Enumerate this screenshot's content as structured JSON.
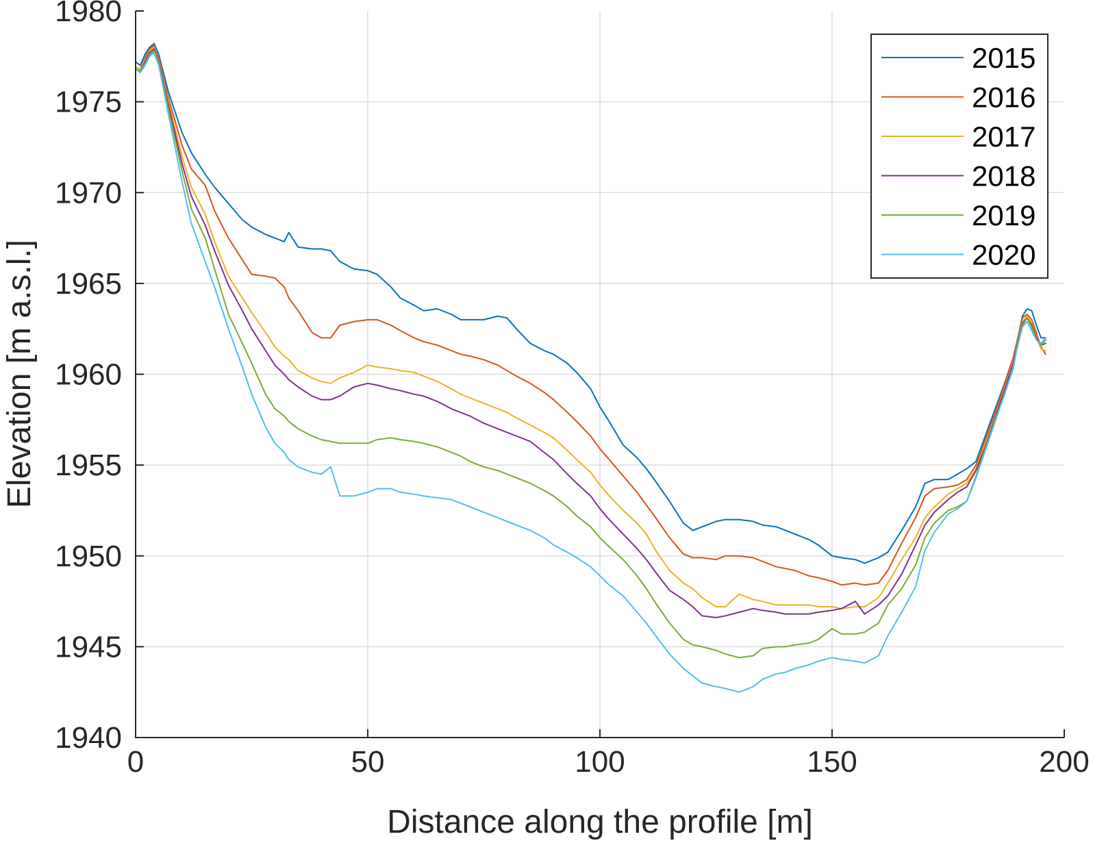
{
  "chart_data": {
    "type": "line",
    "title": "",
    "xlabel": "Distance along the profile [m]",
    "ylabel": "Elevation [m a.s.l.]",
    "xlim": [
      0,
      200
    ],
    "ylim": [
      1940,
      1980
    ],
    "xticks": [
      0,
      50,
      100,
      150,
      200
    ],
    "yticks": [
      1940,
      1945,
      1950,
      1955,
      1960,
      1965,
      1970,
      1975,
      1980
    ],
    "grid": true,
    "legend_position": "top-right",
    "x": [
      0,
      1,
      2,
      3,
      4,
      5,
      7,
      10,
      12,
      15,
      17,
      20,
      23,
      25,
      28,
      30,
      32,
      33,
      35,
      38,
      40,
      42,
      44,
      47,
      50,
      52,
      55,
      57,
      60,
      62,
      65,
      68,
      70,
      72,
      75,
      78,
      80,
      82,
      85,
      88,
      90,
      93,
      95,
      98,
      100,
      102,
      105,
      108,
      110,
      112,
      115,
      118,
      120,
      122,
      125,
      127,
      130,
      133,
      135,
      138,
      140,
      142,
      145,
      147,
      150,
      152,
      155,
      157,
      160,
      162,
      165,
      168,
      170,
      172,
      175,
      177,
      179,
      181,
      183,
      185,
      187,
      189,
      190,
      191,
      192,
      193,
      194,
      195,
      196
    ],
    "series": [
      {
        "name": "2015",
        "color": "#0072BD",
        "values": [
          1977.2,
          1977.0,
          1977.6,
          1978.0,
          1978.2,
          1977.6,
          1975.6,
          1973.3,
          1972.2,
          1971.0,
          1970.3,
          1969.4,
          1968.5,
          1968.1,
          1967.7,
          1967.5,
          1967.3,
          1967.8,
          1967.0,
          1966.9,
          1966.9,
          1966.8,
          1966.2,
          1965.8,
          1965.7,
          1965.5,
          1964.8,
          1964.2,
          1963.8,
          1963.5,
          1963.6,
          1963.3,
          1963.0,
          1963.0,
          1963.0,
          1963.2,
          1963.1,
          1962.5,
          1961.7,
          1961.3,
          1961.1,
          1960.6,
          1960.1,
          1959.2,
          1958.2,
          1957.4,
          1956.1,
          1955.4,
          1954.8,
          1954.1,
          1953.0,
          1951.8,
          1951.4,
          1951.6,
          1951.9,
          1952.0,
          1952.0,
          1951.9,
          1951.7,
          1951.6,
          1951.4,
          1951.2,
          1950.9,
          1950.6,
          1950.0,
          1949.9,
          1949.8,
          1949.6,
          1949.9,
          1950.2,
          1951.4,
          1952.7,
          1954.0,
          1954.2,
          1954.2,
          1954.5,
          1954.8,
          1955.2,
          1956.6,
          1958.0,
          1959.4,
          1960.9,
          1962.0,
          1963.2,
          1963.6,
          1963.5,
          1962.7,
          1962.0,
          1962.0
        ]
      },
      {
        "name": "2016",
        "color": "#D95319",
        "values": [
          1976.9,
          1976.8,
          1977.4,
          1977.9,
          1978.1,
          1977.4,
          1975.3,
          1972.6,
          1971.3,
          1970.4,
          1969.0,
          1967.5,
          1966.3,
          1965.5,
          1965.4,
          1965.3,
          1964.8,
          1964.2,
          1963.5,
          1962.3,
          1962.0,
          1962.0,
          1962.7,
          1962.9,
          1963.0,
          1963.0,
          1962.7,
          1962.4,
          1962.0,
          1961.8,
          1961.6,
          1961.3,
          1961.1,
          1961.0,
          1960.8,
          1960.5,
          1960.2,
          1959.9,
          1959.5,
          1959.0,
          1958.6,
          1957.9,
          1957.4,
          1956.6,
          1955.9,
          1955.3,
          1954.4,
          1953.5,
          1952.8,
          1952.1,
          1951.0,
          1950.1,
          1949.9,
          1949.9,
          1949.8,
          1950.0,
          1950.0,
          1949.9,
          1949.7,
          1949.4,
          1949.3,
          1949.2,
          1948.9,
          1948.8,
          1948.6,
          1948.4,
          1948.5,
          1948.4,
          1948.5,
          1949.2,
          1950.7,
          1952.1,
          1953.3,
          1953.7,
          1953.8,
          1953.9,
          1954.2,
          1955.0,
          1956.4,
          1957.8,
          1959.3,
          1960.9,
          1962.0,
          1963.1,
          1963.3,
          1963.0,
          1962.3,
          1961.5,
          1961.1
        ]
      },
      {
        "name": "2017",
        "color": "#EDB120",
        "values": [
          1976.9,
          1976.8,
          1977.3,
          1977.8,
          1978.0,
          1977.3,
          1975.1,
          1972.0,
          1970.3,
          1968.8,
          1967.3,
          1965.4,
          1964.2,
          1963.4,
          1962.3,
          1961.5,
          1961.0,
          1960.8,
          1960.2,
          1959.8,
          1959.6,
          1959.5,
          1959.8,
          1960.1,
          1960.5,
          1960.4,
          1960.3,
          1960.2,
          1960.1,
          1959.9,
          1959.6,
          1959.2,
          1958.9,
          1958.7,
          1958.4,
          1958.1,
          1957.9,
          1957.6,
          1957.2,
          1956.8,
          1956.5,
          1955.8,
          1955.3,
          1954.6,
          1953.9,
          1953.3,
          1952.5,
          1951.8,
          1951.2,
          1950.3,
          1949.2,
          1948.5,
          1948.2,
          1947.7,
          1947.2,
          1947.2,
          1947.9,
          1947.6,
          1947.5,
          1947.3,
          1947.3,
          1947.3,
          1947.3,
          1947.2,
          1947.2,
          1947.1,
          1947.2,
          1947.2,
          1947.7,
          1948.5,
          1949.8,
          1951.0,
          1952.1,
          1952.7,
          1953.4,
          1953.7,
          1954.0,
          1954.8,
          1956.2,
          1957.6,
          1959.1,
          1960.7,
          1961.9,
          1962.9,
          1963.2,
          1962.8,
          1962.1,
          1961.4,
          1961.3
        ]
      },
      {
        "name": "2018",
        "color": "#7E2F8E",
        "values": [
          1976.8,
          1976.7,
          1977.2,
          1977.7,
          1977.9,
          1977.2,
          1974.9,
          1971.6,
          1969.8,
          1968.2,
          1966.8,
          1964.9,
          1963.5,
          1962.5,
          1961.3,
          1960.5,
          1960.0,
          1959.7,
          1959.3,
          1958.8,
          1958.6,
          1958.6,
          1958.8,
          1959.3,
          1959.5,
          1959.4,
          1959.2,
          1959.1,
          1958.9,
          1958.8,
          1958.5,
          1958.1,
          1957.9,
          1957.7,
          1957.3,
          1957.0,
          1956.8,
          1956.6,
          1956.3,
          1955.7,
          1955.3,
          1954.5,
          1954.0,
          1953.3,
          1952.6,
          1952.0,
          1951.2,
          1950.4,
          1949.8,
          1949.1,
          1948.1,
          1947.6,
          1947.2,
          1946.7,
          1946.6,
          1946.7,
          1946.9,
          1947.1,
          1947.0,
          1946.9,
          1946.8,
          1946.8,
          1946.8,
          1946.9,
          1947.0,
          1947.1,
          1947.5,
          1946.8,
          1947.3,
          1947.8,
          1949.0,
          1950.6,
          1951.7,
          1952.4,
          1953.1,
          1953.5,
          1953.8,
          1954.7,
          1956.0,
          1957.5,
          1959.0,
          1960.6,
          1961.8,
          1962.8,
          1963.1,
          1962.7,
          1962.0,
          1961.6,
          1961.7
        ]
      },
      {
        "name": "2019",
        "color": "#77AC30",
        "values": [
          1976.8,
          1976.7,
          1977.1,
          1977.6,
          1977.8,
          1977.1,
          1974.7,
          1971.2,
          1969.1,
          1967.5,
          1965.8,
          1963.3,
          1961.7,
          1960.6,
          1958.9,
          1958.1,
          1957.7,
          1957.4,
          1957.0,
          1956.6,
          1956.4,
          1956.3,
          1956.2,
          1956.2,
          1956.2,
          1956.4,
          1956.5,
          1956.4,
          1956.3,
          1956.2,
          1956.0,
          1955.7,
          1955.5,
          1955.2,
          1954.9,
          1954.7,
          1954.5,
          1954.3,
          1954.0,
          1953.6,
          1953.3,
          1952.7,
          1952.2,
          1951.6,
          1951.0,
          1950.5,
          1949.8,
          1948.9,
          1948.2,
          1947.4,
          1946.3,
          1945.4,
          1945.1,
          1945.0,
          1944.8,
          1944.6,
          1944.4,
          1944.5,
          1944.9,
          1945.0,
          1945.0,
          1945.1,
          1945.2,
          1945.4,
          1946.0,
          1945.7,
          1945.7,
          1945.8,
          1946.3,
          1947.3,
          1948.2,
          1949.5,
          1951.0,
          1951.8,
          1952.5,
          1952.7,
          1953.0,
          1954.4,
          1955.9,
          1957.4,
          1958.8,
          1960.3,
          1961.7,
          1962.7,
          1963.1,
          1962.6,
          1961.9,
          1961.6,
          1961.9
        ]
      },
      {
        "name": "2020",
        "color": "#4DBEEE",
        "values": [
          1976.8,
          1976.6,
          1977.0,
          1977.5,
          1977.7,
          1977.0,
          1974.4,
          1970.6,
          1968.3,
          1966.2,
          1964.8,
          1962.5,
          1960.4,
          1958.9,
          1957.1,
          1956.2,
          1955.7,
          1955.3,
          1954.9,
          1954.6,
          1954.5,
          1954.9,
          1953.3,
          1953.3,
          1953.5,
          1953.7,
          1953.7,
          1953.5,
          1953.4,
          1953.3,
          1953.2,
          1953.1,
          1952.9,
          1952.7,
          1952.4,
          1952.1,
          1951.9,
          1951.7,
          1951.4,
          1951.0,
          1950.6,
          1950.2,
          1949.9,
          1949.4,
          1948.9,
          1948.4,
          1947.8,
          1946.9,
          1946.3,
          1945.6,
          1944.6,
          1943.8,
          1943.4,
          1943.0,
          1942.8,
          1942.7,
          1942.5,
          1942.8,
          1943.2,
          1943.5,
          1943.6,
          1943.8,
          1944.0,
          1944.2,
          1944.4,
          1944.3,
          1944.2,
          1944.1,
          1944.5,
          1945.6,
          1946.9,
          1948.3,
          1950.3,
          1951.3,
          1952.3,
          1952.6,
          1953.0,
          1954.3,
          1955.8,
          1957.3,
          1958.8,
          1960.4,
          1961.6,
          1962.6,
          1962.9,
          1962.4,
          1961.9,
          1961.7,
          1962.0
        ]
      }
    ]
  }
}
